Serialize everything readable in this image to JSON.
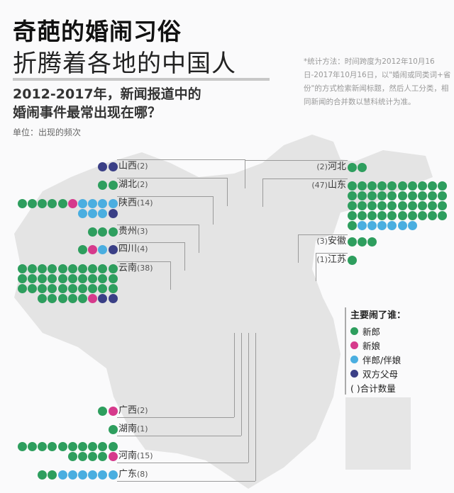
{
  "header": {
    "title": "奇葩的婚闹习俗",
    "title2": "折腾着各地的中国人",
    "subtitle1": "2012-2017年，新闻报道中的",
    "subtitle2": "婚闹事件最常出现在哪？",
    "unit": "单位：出现的频次",
    "note": "*统计方法：时间跨度为2012年10月16日-2017年10月16日，以\"婚闹或同类词+省份\"的方式检索新闻标题，然后人工分类，相同新闻的合并数以慧科统计为准。"
  },
  "legend": {
    "title": "主要闹了谁：",
    "items": [
      {
        "label": "新郎",
        "color": "#2e9e5e"
      },
      {
        "label": "新娘",
        "color": "#d63a8c"
      },
      {
        "label": "伴郎/伴娘",
        "color": "#4aaee0"
      },
      {
        "label": "双方父母",
        "color": "#3a3f86"
      }
    ],
    "total_label": "( )合计数量"
  },
  "chart_data": {
    "type": "dot",
    "title": "2012-2017年，新闻报道中的婚闹事件最常出现在哪？",
    "unit": "出现的频次",
    "series_order": [
      "新郎",
      "新娘",
      "伴郎/伴娘",
      "双方父母"
    ],
    "provinces": [
      {
        "name": "山西",
        "total": 2,
        "counts": [
          0,
          0,
          0,
          2
        ]
      },
      {
        "name": "湖北",
        "total": 2,
        "counts": [
          2,
          0,
          0,
          0
        ]
      },
      {
        "name": "陕西",
        "total": 14,
        "counts": [
          5,
          1,
          7,
          1
        ]
      },
      {
        "name": "贵州",
        "total": 3,
        "counts": [
          3,
          0,
          0,
          0
        ]
      },
      {
        "name": "四川",
        "total": 4,
        "counts": [
          1,
          1,
          1,
          1
        ]
      },
      {
        "name": "云南",
        "total": 38,
        "counts": [
          35,
          1,
          0,
          2
        ]
      },
      {
        "name": "河北",
        "total": 2,
        "counts": [
          2,
          0,
          0,
          0
        ]
      },
      {
        "name": "山东",
        "total": 47,
        "counts": [
          41,
          0,
          6,
          0
        ]
      },
      {
        "name": "安徽",
        "total": 3,
        "counts": [
          3,
          0,
          0,
          0
        ]
      },
      {
        "name": "江苏",
        "total": 1,
        "counts": [
          1,
          0,
          0,
          0
        ]
      },
      {
        "name": "广西",
        "total": 2,
        "counts": [
          1,
          1,
          0,
          0
        ]
      },
      {
        "name": "湖南",
        "total": 1,
        "counts": [
          1,
          0,
          0,
          0
        ]
      },
      {
        "name": "河南",
        "total": 15,
        "counts": [
          14,
          1,
          0,
          0
        ]
      },
      {
        "name": "广东",
        "total": 8,
        "counts": [
          2,
          0,
          6,
          0
        ]
      }
    ]
  }
}
